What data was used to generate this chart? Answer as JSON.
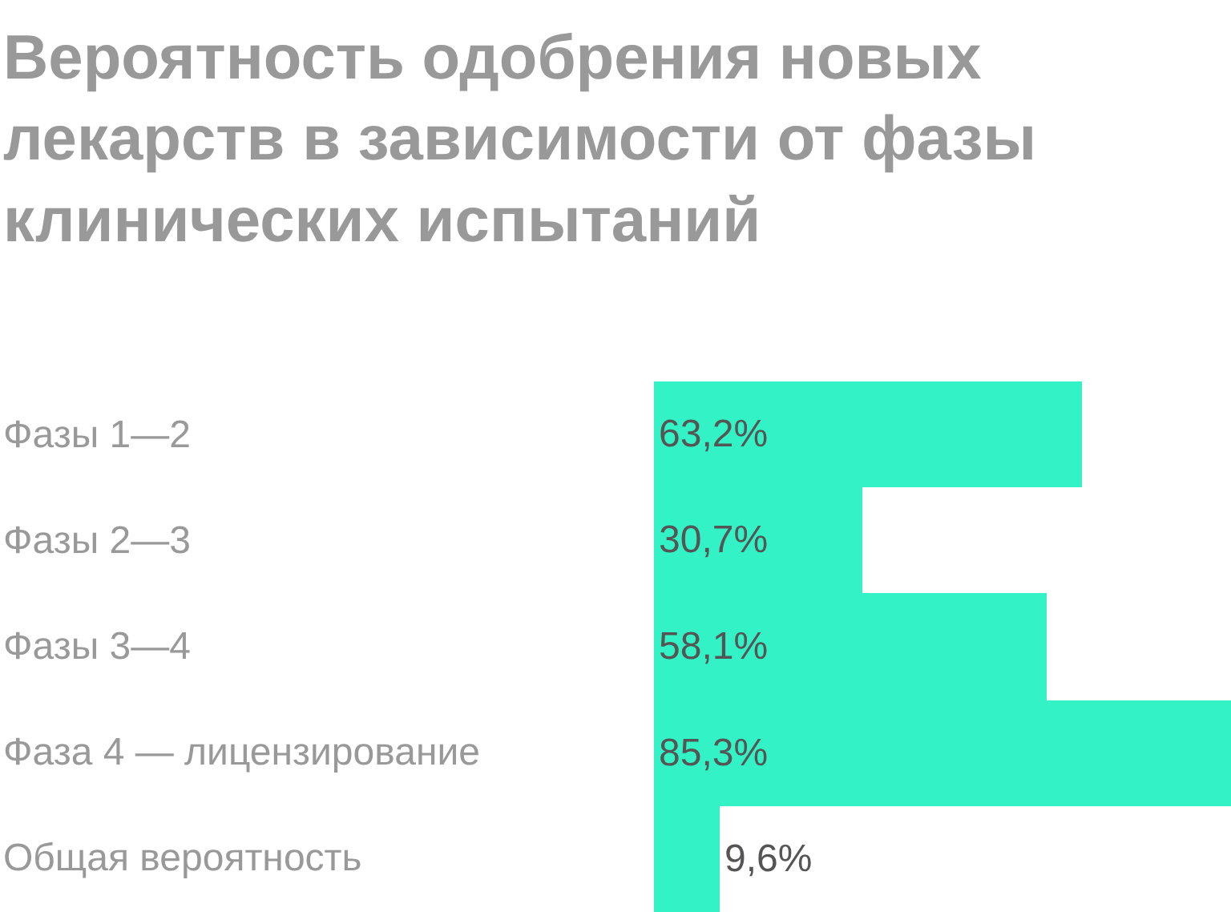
{
  "chart_data": {
    "type": "bar",
    "orientation": "horizontal",
    "title": "Вероятность одобрения новых\nлекарств в зависимости от фазы\nклинических испытаний",
    "categories": [
      "Фазы 1—2",
      "Фазы 2—3",
      "Фазы 3—4",
      "Фаза 4 — лицензирование",
      "Общая вероятность"
    ],
    "values": [
      63.2,
      30.7,
      58.1,
      85.3,
      9.6
    ],
    "value_labels": [
      "63,2%",
      "30,7%",
      "58,1%",
      "85,3%",
      "9,6%"
    ],
    "color": "#33f2c6",
    "legend": false
  }
}
